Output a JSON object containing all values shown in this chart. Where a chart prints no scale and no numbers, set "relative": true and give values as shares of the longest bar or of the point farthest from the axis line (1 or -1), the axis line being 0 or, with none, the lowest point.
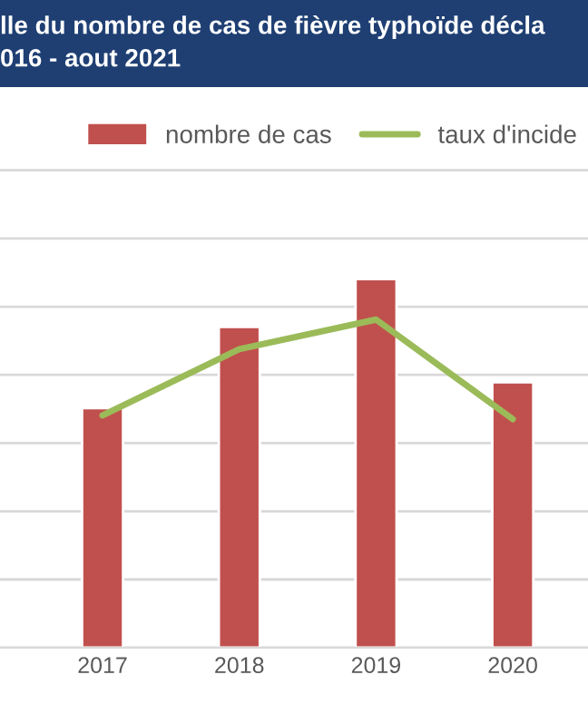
{
  "chart_data": {
    "type": "bar",
    "title": "lle du nombre de cas de fièvre typhoïde décla\n016 - aout 2021",
    "categories": [
      "2017",
      "2018",
      "2019",
      "2020"
    ],
    "relative": true,
    "series": [
      {
        "name": "nombre de cas",
        "color": "#c0504d",
        "values": [
          0.65,
          0.87,
          1.0,
          0.72
        ]
      },
      {
        "name": "taux d'incide",
        "color": "#9bbb59",
        "type": "line",
        "values": [
          0.63,
          0.81,
          0.89,
          0.62
        ]
      }
    ],
    "grid": "y",
    "legend": "top right",
    "marker": "none"
  }
}
